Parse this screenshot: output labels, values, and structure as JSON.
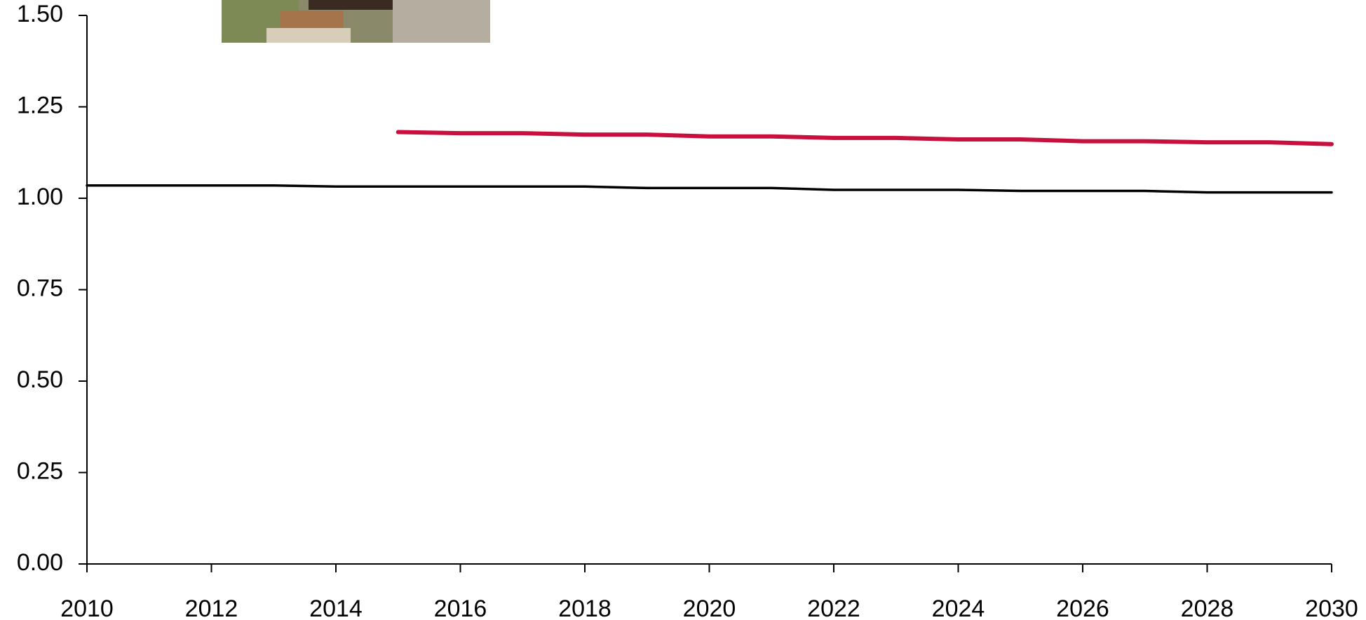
{
  "chart_data": {
    "type": "line",
    "x": [
      2010,
      2011,
      2012,
      2013,
      2014,
      2015,
      2016,
      2017,
      2018,
      2019,
      2020,
      2021,
      2022,
      2023,
      2024,
      2025,
      2026,
      2027,
      2028,
      2029,
      2030
    ],
    "series": [
      {
        "color": "#000000",
        "values": [
          1.035,
          1.035,
          1.035,
          1.035,
          1.032,
          1.032,
          1.032,
          1.032,
          1.032,
          1.028,
          1.028,
          1.028,
          1.023,
          1.023,
          1.023,
          1.02,
          1.02,
          1.02,
          1.016,
          1.016,
          1.016
        ]
      },
      {
        "color": "#c8103e",
        "values": [
          null,
          null,
          null,
          null,
          null,
          1.181,
          1.178,
          1.178,
          1.174,
          1.174,
          1.169,
          1.169,
          1.165,
          1.165,
          1.161,
          1.161,
          1.156,
          1.156,
          1.153,
          1.153,
          1.148
        ]
      }
    ],
    "xlim": [
      2010,
      2030
    ],
    "xticks": [
      2010,
      2012,
      2014,
      2016,
      2018,
      2020,
      2022,
      2024,
      2026,
      2028,
      2030
    ],
    "ylim": [
      0,
      1.5
    ],
    "yticks": [
      {
        "value": 0,
        "label": "0.00"
      },
      0.25,
      {
        "value": 0.5,
        "label": "0.50"
      },
      0.75,
      {
        "value": 1,
        "label": "1.00"
      },
      1.25,
      {
        "value": 1.5,
        "label": "1.50"
      }
    ],
    "grid": false
  }
}
